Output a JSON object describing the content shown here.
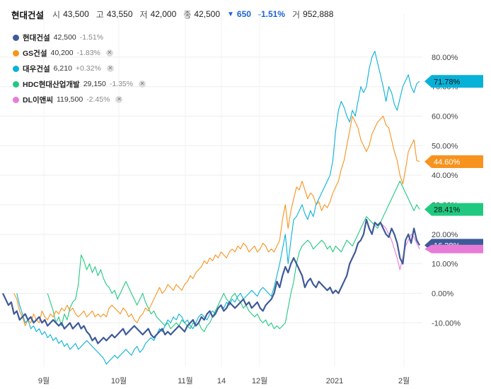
{
  "header": {
    "name": "현대건설",
    "open_label": "시",
    "open": "43,500",
    "high_label": "고",
    "high": "43,550",
    "low_label": "저",
    "low": "42,000",
    "close_label": "종",
    "close": "42,500",
    "change_arrow": "▼",
    "change": "650",
    "change_pct": "-1.51%",
    "volume_label": "거",
    "volume": "952,888"
  },
  "chart_data": {
    "type": "line",
    "x_ticks": [
      "9월",
      "10월",
      "11월",
      "14",
      "12월",
      "2021",
      "2월"
    ],
    "y_ticks": [
      "80.00%",
      "70.00%",
      "60.00%",
      "50.00%",
      "40.00%",
      "30.00%",
      "20.00%",
      "10.00%",
      "0.00%",
      "-10.00%"
    ],
    "ylim": [
      -25,
      85
    ],
    "grid": true,
    "legend_position": "top-left",
    "series": [
      {
        "name": "현대건설",
        "price": "42,500",
        "pct": "-1.51%",
        "last": "16.28%",
        "color": "#3f5a99",
        "removable": false,
        "values": [
          0,
          -2,
          -4,
          -3,
          -7,
          -6,
          -9,
          -8,
          -7,
          -9,
          -8,
          -10,
          -9,
          -8,
          -10,
          -9,
          -11,
          -10,
          -9,
          -10,
          -11,
          -10,
          -12,
          -11,
          -10,
          -12,
          -11,
          -10,
          -12,
          -11,
          -13,
          -14,
          -16,
          -15,
          -17,
          -16,
          -15,
          -16,
          -15,
          -14,
          -15,
          -14,
          -13,
          -12,
          -14,
          -13,
          -12,
          -11,
          -12,
          -13,
          -14,
          -13,
          -12,
          -14,
          -15,
          -14,
          -13,
          -12,
          -14,
          -13,
          -14,
          -13,
          -12,
          -11,
          -12,
          -13,
          -11,
          -10,
          -9,
          -11,
          -10,
          -8,
          -9,
          -7,
          -6,
          -8,
          -7,
          -5,
          -4,
          -6,
          -5,
          -3,
          -4,
          -5,
          -4,
          -3,
          -2,
          -4,
          -3,
          -5,
          -4,
          -3,
          -5,
          -6,
          -4,
          -3,
          -2,
          0,
          4,
          2,
          6,
          9,
          7,
          10,
          12,
          10,
          8,
          6,
          2,
          4,
          5,
          3,
          2,
          4,
          3,
          2,
          1,
          2,
          0,
          1,
          0,
          2,
          4,
          6,
          10,
          12,
          14,
          17,
          18,
          20,
          25,
          22,
          20,
          24,
          23,
          24,
          22,
          20,
          19,
          22,
          20,
          17,
          12,
          10,
          18,
          20,
          17,
          22,
          18,
          16.28
        ]
      },
      {
        "name": "GS건설",
        "price": "40,200",
        "pct": "-1.83%",
        "last": "44.60%",
        "color": "#f7931e",
        "removable": true,
        "values": [
          0,
          -2,
          -6,
          -8,
          -11,
          -9,
          -10,
          -7,
          -9,
          -10,
          -6,
          -8,
          -9,
          -7,
          -8,
          -6,
          -7,
          -5,
          -6,
          -4,
          -6,
          -5,
          -7,
          -8,
          -7,
          -6,
          -8,
          -7,
          -6,
          -8,
          -7,
          -8,
          -7,
          -8,
          -5,
          -4,
          -5,
          -6,
          -7,
          -5,
          -6,
          -8,
          -7,
          -9,
          -10,
          -8,
          -7,
          -5,
          -6,
          -4,
          -2,
          0,
          2,
          0,
          1,
          3,
          2,
          1,
          3,
          2,
          1,
          3,
          4,
          6,
          5,
          7,
          8,
          9,
          11,
          10,
          12,
          11,
          13,
          12,
          14,
          13,
          12,
          14,
          15,
          14,
          16,
          15,
          17,
          16,
          14,
          15,
          16,
          14,
          15,
          17,
          16,
          14,
          15,
          14,
          16,
          18,
          25,
          30,
          22,
          28,
          32,
          36,
          35,
          38,
          35,
          32,
          34,
          33,
          30,
          31,
          28,
          30,
          29,
          31,
          34,
          36,
          38,
          42,
          45,
          50,
          55,
          60,
          58,
          56,
          52,
          50,
          48,
          50,
          54,
          56,
          58,
          59,
          60,
          57,
          56,
          52,
          48,
          45,
          40,
          37,
          42,
          48,
          50,
          52,
          45,
          44.6
        ]
      },
      {
        "name": "대우건설",
        "price": "6,210",
        "pct": "+0.32%",
        "last": "71.78%",
        "color": "#08b1d8",
        "removable": true,
        "values": [
          0,
          -4,
          -7,
          -10,
          -9,
          -12,
          -11,
          -13,
          -12,
          -14,
          -13,
          -15,
          -14,
          -16,
          -15,
          -17,
          -16,
          -18,
          -17,
          -19,
          -18,
          -17,
          -19,
          -18,
          -17,
          -16,
          -17,
          -18,
          -19,
          -20,
          -21,
          -22,
          -24,
          -23,
          -22,
          -21,
          -22,
          -21,
          -20,
          -19,
          -20,
          -21,
          -19,
          -18,
          -20,
          -19,
          -17,
          -16,
          -15,
          -16,
          -14,
          -12,
          -13,
          -11,
          -9,
          -10,
          -8,
          -9,
          -7,
          -8,
          -10,
          -9,
          -11,
          -12,
          -10,
          -8,
          -7,
          -8,
          -9,
          -7,
          -6,
          -7,
          -5,
          -4,
          -5,
          -3,
          -4,
          -2,
          -3,
          -1,
          0,
          -2,
          -1,
          0,
          1,
          0,
          -1,
          1,
          2,
          1,
          0,
          -1,
          2,
          6,
          10,
          15,
          20,
          10,
          18,
          25,
          26,
          28,
          30,
          27,
          25,
          28,
          26,
          30,
          32,
          34,
          36,
          38,
          40,
          45,
          55,
          62,
          65,
          63,
          60,
          58,
          62,
          60,
          65,
          70,
          68,
          70,
          76,
          80,
          82,
          78,
          74,
          70,
          65,
          70,
          68,
          64,
          62,
          66,
          70,
          72,
          74,
          70,
          68,
          71,
          71.78
        ]
      },
      {
        "name": "HDC현대산업개발",
        "price": "29,150",
        "pct": "-1.35%",
        "last": "28.41%",
        "color": "#20c97f",
        "removable": true,
        "values": [
          0,
          -3,
          -6,
          -10,
          -8,
          -11,
          -7,
          -9,
          -5,
          -3,
          -2,
          3,
          13,
          11,
          8,
          10,
          7,
          9,
          6,
          8,
          5,
          3,
          2,
          0,
          1,
          -2,
          0,
          2,
          4,
          2,
          0,
          -2,
          -4,
          -2,
          0,
          -3,
          -5,
          -7,
          -6,
          -8,
          -9,
          -10,
          -11,
          -10,
          -12,
          -11,
          -10,
          -11,
          -9,
          -10,
          -11,
          -12,
          -10,
          -11,
          -10,
          -12,
          -13,
          -11,
          -10,
          -8,
          -6,
          -4,
          -2,
          0,
          -2,
          -3,
          -1,
          0,
          -2,
          -3,
          -5,
          -4,
          -6,
          -7,
          -8,
          -7,
          -9,
          -10,
          -9,
          -11,
          -10,
          -12,
          -11,
          -12,
          -11,
          -10,
          -5,
          0,
          4,
          10,
          14,
          16,
          17,
          18,
          17,
          15,
          16,
          17,
          18,
          17,
          15,
          16,
          14,
          16,
          15,
          14,
          16,
          18,
          17,
          16,
          18,
          20,
          22,
          24,
          26,
          25,
          24,
          23,
          22,
          24,
          26,
          28,
          30,
          32,
          34,
          36,
          38,
          36,
          34,
          32,
          30,
          28,
          30,
          28.41
        ]
      },
      {
        "name": "DL이앤씨",
        "price": "119,500",
        "pct": "-2.45%",
        "last": "",
        "color": "#e87bd8",
        "removable": true,
        "values": [
          24,
          23,
          22,
          20,
          18,
          15,
          12,
          8,
          12,
          16,
          18,
          20,
          19,
          17,
          15
        ]
      }
    ]
  }
}
